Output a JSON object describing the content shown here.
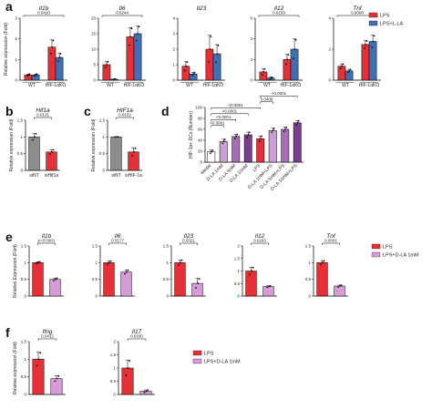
{
  "figure": {
    "panels": [
      "a",
      "b",
      "c",
      "d",
      "e",
      "f"
    ]
  },
  "chart_data": [
    {
      "id": "a-Il1b",
      "type": "bar",
      "title": "Il1b",
      "ylabel": "Relative expression (Fold)",
      "ylim": [
        0,
        3
      ],
      "yticks": [
        0,
        1,
        2,
        3
      ],
      "groups": [
        "WT",
        "HIF-1αKO"
      ],
      "series": [
        {
          "name": "LPS",
          "color": "#e63036",
          "values": [
            0.25,
            1.6
          ],
          "errors": [
            0.05,
            0.35
          ]
        },
        {
          "name": "LPS+L-LA",
          "color": "#3f6fb5",
          "values": [
            0.25,
            1.1
          ],
          "errors": [
            0.05,
            0.2
          ]
        }
      ],
      "sig": [
        {
          "label": "0.0420"
        }
      ]
    },
    {
      "id": "a-Il6",
      "type": "bar",
      "title": "Il6",
      "ylim": [
        0,
        20
      ],
      "yticks": [
        0,
        5,
        10,
        15,
        20
      ],
      "groups": [
        "WT",
        "HIF-1αKO"
      ],
      "series": [
        {
          "name": "LPS",
          "color": "#e63036",
          "values": [
            5,
            14
          ],
          "errors": [
            1,
            3
          ]
        },
        {
          "name": "LPS+L-LA",
          "color": "#3f6fb5",
          "values": [
            0.3,
            15
          ],
          "errors": [
            0.1,
            2.5
          ]
        }
      ],
      "sig": [
        {
          "label": "0.0244"
        }
      ]
    },
    {
      "id": "a-Il23",
      "type": "bar",
      "title": "Il23",
      "ylim": [
        0,
        4
      ],
      "yticks": [
        0,
        1,
        2,
        3,
        4
      ],
      "groups": [
        "WT",
        "HIF-1αKO"
      ],
      "series": [
        {
          "name": "LPS",
          "color": "#e63036",
          "values": [
            0.9,
            2.0
          ],
          "errors": [
            0.3,
            0.9
          ]
        },
        {
          "name": "LPS+L-LA",
          "color": "#3f6fb5",
          "values": [
            0.4,
            1.7
          ],
          "errors": [
            0.1,
            0.6
          ]
        }
      ],
      "sig": []
    },
    {
      "id": "a-Il12",
      "type": "bar",
      "title": "Il12",
      "ylim": [
        0,
        6
      ],
      "yticks": [
        0,
        2,
        4,
        6
      ],
      "groups": [
        "WT",
        "HIF-1αKO"
      ],
      "series": [
        {
          "name": "LPS",
          "color": "#e63036",
          "values": [
            0.8,
            2.0
          ],
          "errors": [
            0.3,
            0.5
          ]
        },
        {
          "name": "LPS+L-LA",
          "color": "#3f6fb5",
          "values": [
            0.2,
            3.0
          ],
          "errors": [
            0.1,
            1.0
          ]
        }
      ],
      "sig": [
        {
          "label": "0.0159"
        }
      ]
    },
    {
      "id": "a-Tnf",
      "type": "bar",
      "title": "Tnf",
      "ylim": [
        0,
        4
      ],
      "yticks": [
        0,
        2,
        4
      ],
      "groups": [
        "WT",
        "HIF-1αKO"
      ],
      "series": [
        {
          "name": "LPS",
          "color": "#e63036",
          "values": [
            0.9,
            2.3
          ],
          "errors": [
            0.15,
            0.25
          ]
        },
        {
          "name": "LPS+L-LA",
          "color": "#3f6fb5",
          "values": [
            0.6,
            2.5
          ],
          "errors": [
            0.1,
            0.4
          ]
        }
      ],
      "sig": [
        {
          "label": "0.0008"
        }
      ]
    },
    {
      "id": "b-Hif1a",
      "type": "bar",
      "title": "Hif1a",
      "ylabel": "Relative expression (Fold)",
      "ylim": [
        0,
        1.5
      ],
      "yticks": [
        0.0,
        0.5,
        1.0,
        1.5
      ],
      "categories": [
        "siNT",
        "siHif1a"
      ],
      "values": [
        1.0,
        0.55
      ],
      "errors": [
        0.1,
        0.07
      ],
      "colors": [
        "#8c8c8c",
        "#e63036"
      ],
      "sig": [
        {
          "label": "0.0131"
        }
      ]
    },
    {
      "id": "c-HIF1a",
      "type": "bar",
      "title": "HIF1a",
      "ylabel": "Relative expression (Fold)",
      "ylim": [
        0,
        1.5
      ],
      "yticks": [
        0.0,
        0.5,
        1.0,
        1.5
      ],
      "categories": [
        "siNT",
        "siHIF-1a"
      ],
      "values": [
        1.0,
        0.55
      ],
      "errors": [
        0.0,
        0.12
      ],
      "colors": [
        "#8c8c8c",
        "#e63036"
      ],
      "sig": [
        {
          "label": "0.0102"
        }
      ]
    },
    {
      "id": "d-HIF1a-DCs",
      "type": "bar",
      "ylabel": "HIF-1α+ DCs (Number)",
      "ylim": [
        0,
        100
      ],
      "yticks": [
        0,
        20,
        40,
        60,
        80,
        100
      ],
      "categories": [
        "Medai",
        "D-LA 1mM",
        "D-LA 5mM",
        "D-LA 10mM",
        "LPS",
        "D-LA 1mM+LPS",
        "D-LA 5mM+LPS",
        "D-LA 10mM+LPS"
      ],
      "values": [
        19,
        38,
        47,
        50,
        43,
        58,
        60,
        72
      ],
      "errors": [
        3,
        4,
        4,
        5,
        5,
        4,
        4,
        4
      ],
      "colors": [
        "#ffffff",
        "#cba0d4",
        "#a86db8",
        "#7a3d8f",
        "#e63036",
        "#cba0d4",
        "#a86db8",
        "#7a3d8f"
      ],
      "sig": [
        {
          "label": "<0.0001"
        },
        {
          "label": "<0.0001"
        },
        {
          "label": "<0.0001"
        },
        {
          "label": "<0.0001"
        },
        {
          "label": "0.0408"
        },
        {
          "label": "<0.0001"
        }
      ]
    },
    {
      "id": "e-Il1b",
      "type": "bar",
      "title": "Il1b",
      "ylabel": "Relative Expression (Fold)",
      "ylim": [
        0,
        1.5
      ],
      "yticks": [
        0.0,
        0.5,
        1.0,
        1.5
      ],
      "categories": [
        "LPS",
        "LPS+D-LA 1mM"
      ],
      "values": [
        1.0,
        0.5
      ],
      "errors": [
        0.03,
        0.04
      ],
      "colors": [
        "#e63036",
        "#d99ad9"
      ],
      "sig": [
        {
          "label": "p=0.0001"
        }
      ]
    },
    {
      "id": "e-Il6",
      "type": "bar",
      "title": "Il6",
      "ylim": [
        0,
        1.5
      ],
      "yticks": [
        0.0,
        0.5,
        1.0,
        1.5
      ],
      "categories": [
        "LPS",
        "LPS+D-LA 1mM"
      ],
      "values": [
        1.0,
        0.72
      ],
      "errors": [
        0.05,
        0.06
      ],
      "colors": [
        "#e63036",
        "#d99ad9"
      ],
      "sig": [
        {
          "label": "0.0177"
        }
      ]
    },
    {
      "id": "e-Il23",
      "type": "bar",
      "title": "Il23",
      "ylim": [
        0,
        1.5
      ],
      "yticks": [
        0.0,
        0.5,
        1.0,
        1.5
      ],
      "categories": [
        "LPS",
        "LPS+D-LA 1mM"
      ],
      "values": [
        1.0,
        0.38
      ],
      "errors": [
        0.08,
        0.15
      ],
      "colors": [
        "#e63036",
        "#d99ad9"
      ],
      "sig": [
        {
          "label": "0.0321"
        }
      ]
    },
    {
      "id": "e-Il12",
      "type": "bar",
      "title": "Il12",
      "ylim": [
        0,
        2.0
      ],
      "yticks": [
        0.0,
        0.5,
        1.0,
        1.5,
        2.0
      ],
      "categories": [
        "LPS",
        "LPS+D-LA 1mM"
      ],
      "values": [
        1.0,
        0.38
      ],
      "errors": [
        0.15,
        0.03
      ],
      "colors": [
        "#e63036",
        "#d99ad9"
      ],
      "sig": [
        {
          "label": "0.0293"
        }
      ]
    },
    {
      "id": "e-Tnf",
      "type": "bar",
      "title": "Tnf",
      "ylim": [
        0,
        1.5
      ],
      "yticks": [
        0.0,
        0.5,
        1.0,
        1.5
      ],
      "categories": [
        "LPS",
        "LPS+D-LA 1mM"
      ],
      "values": [
        1.0,
        0.3
      ],
      "errors": [
        0.06,
        0.03
      ],
      "colors": [
        "#e63036",
        "#d99ad9"
      ],
      "sig": [
        {
          "label": "0.0001"
        }
      ]
    },
    {
      "id": "f-Ifng",
      "type": "bar",
      "title": "Ifng",
      "ylabel": "Relative expression (Fold)",
      "ylim": [
        0,
        1.5
      ],
      "yticks": [
        0.0,
        0.5,
        1.0,
        1.5
      ],
      "categories": [
        "LPS",
        "LPS+D-LA 1mM"
      ],
      "values": [
        1.0,
        0.45
      ],
      "errors": [
        0.2,
        0.08
      ],
      "colors": [
        "#e63036",
        "#d99ad9"
      ],
      "sig": [
        {
          "label": "0.0412"
        }
      ]
    },
    {
      "id": "f-Il17",
      "type": "bar",
      "title": "Il17",
      "ylim": [
        0,
        2.0
      ],
      "yticks": [
        0.0,
        0.5,
        1.0,
        1.5,
        2.0
      ],
      "categories": [
        "LPS",
        "LPS+D-LA 1mM"
      ],
      "values": [
        1.0,
        0.12
      ],
      "errors": [
        0.3,
        0.05
      ],
      "colors": [
        "#e63036",
        "#d99ad9"
      ],
      "sig": [
        {
          "label": "0.0330"
        }
      ]
    }
  ],
  "legends": {
    "a": [
      {
        "label": "LPS",
        "color": "#e63036"
      },
      {
        "label": "LPS+L-LA",
        "color": "#3f6fb5"
      }
    ],
    "e": [
      {
        "label": "LPS",
        "color": "#e63036"
      },
      {
        "label": "LPS+D-LA 1mM",
        "color": "#d99ad9"
      }
    ],
    "f": [
      {
        "label": "LPS",
        "color": "#e63036"
      },
      {
        "label": "LPS+D-LA 1mM",
        "color": "#d99ad9"
      }
    ]
  }
}
